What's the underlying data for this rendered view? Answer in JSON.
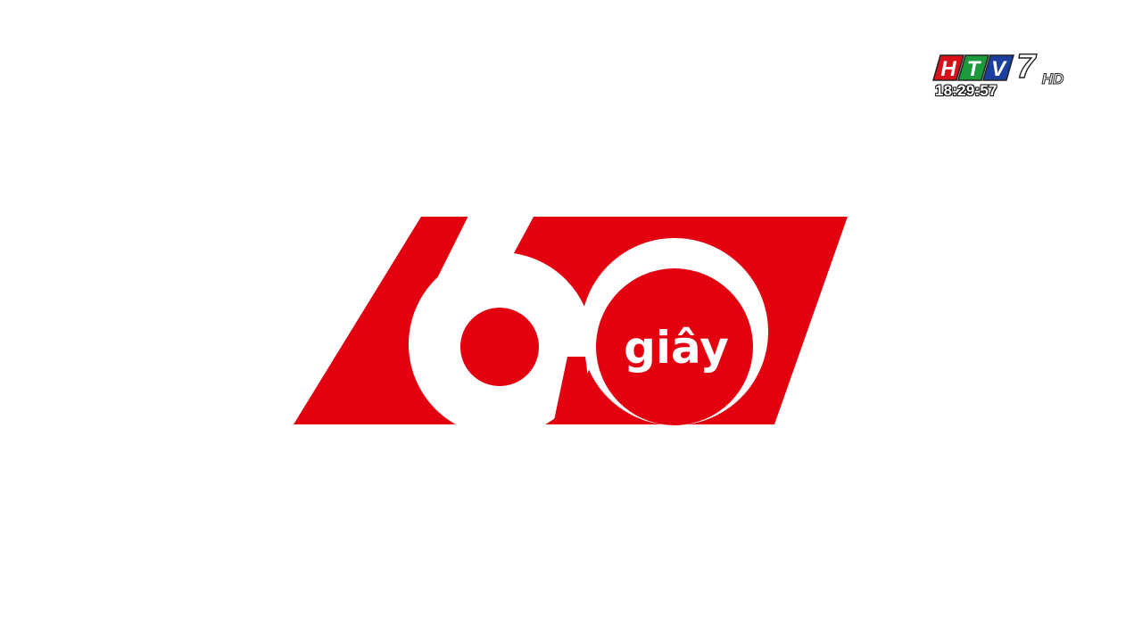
{
  "channel": {
    "logo_text": "HTV7 HD",
    "clock": "18:29:57",
    "colors": {
      "h_block": "#d8101a",
      "t_block": "#1a9a3a",
      "v_block": "#1b3f9e",
      "seven": "#ffffff",
      "outline": "#222222"
    }
  },
  "program_logo": {
    "wordmark": "60 giây",
    "caption": "giây",
    "colors": {
      "primary": "#e3000f",
      "background": "#ffffff",
      "text": "#ffffff"
    }
  }
}
